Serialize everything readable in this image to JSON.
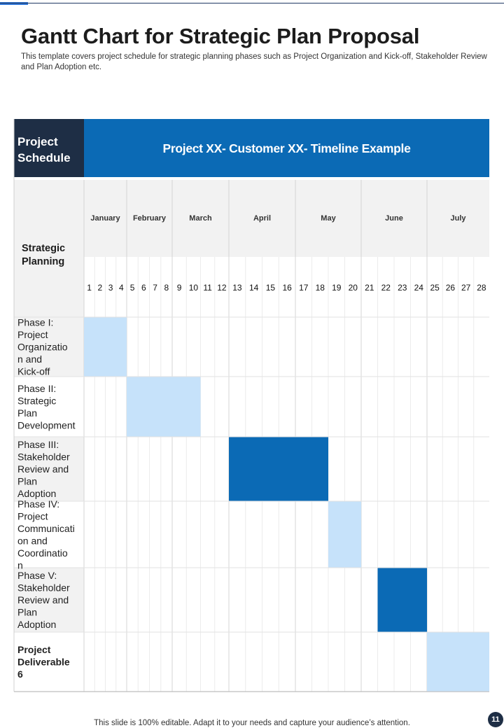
{
  "page": {
    "title": "Gantt Chart for Strategic Plan Proposal",
    "subtitle": "This template covers project schedule for strategic planning phases such as Project Organization and Kick-off, Stakeholder Review and Plan Adoption etc.",
    "footer": "This slide is 100% editable. Adapt it to your needs and capture your audience’s attention.",
    "page_number": "11"
  },
  "colors": {
    "dark_navy": "#1e2e45",
    "header_blue": "#0b6ab5",
    "bar_dark": "#0b6ab5",
    "bar_light": "#c6e2fa",
    "header_gray": "#f2f2f2",
    "row_alt": "#f2f2f2"
  },
  "chart_data": {
    "type": "table",
    "corner_label": "Project Schedule",
    "banner_title": "Project XX- Customer XX- Timeline Example",
    "row_header_label": "Strategic Planning",
    "months": [
      {
        "name": "January",
        "weeks": [
          "1",
          "2",
          "3",
          "4"
        ]
      },
      {
        "name": "February",
        "weeks": [
          "5",
          "6",
          "7",
          "8"
        ]
      },
      {
        "name": "March",
        "weeks": [
          "9",
          "10",
          "11",
          "12"
        ]
      },
      {
        "name": "April",
        "weeks": [
          "13",
          "14",
          "15",
          "16"
        ]
      },
      {
        "name": "May",
        "weeks": [
          "17",
          "18",
          "19",
          "20"
        ]
      },
      {
        "name": "June",
        "weeks": [
          "21",
          "22",
          "23",
          "24"
        ]
      },
      {
        "name": "July",
        "weeks": [
          "25",
          "26",
          "27",
          "28"
        ]
      }
    ],
    "tasks": [
      {
        "name": "Phase I: Project Organization and Kick-off",
        "start_week": 1,
        "end_week": 4,
        "style": "light"
      },
      {
        "name": "Phase II: Strategic Plan Development",
        "start_week": 5,
        "end_week": 10,
        "style": "light"
      },
      {
        "name": "Phase III: Stakeholder Review and Plan Adoption",
        "start_week": 13,
        "end_week": 18,
        "style": "dark"
      },
      {
        "name": "Phase IV: Project Communication and Coordination",
        "start_week": 19,
        "end_week": 20,
        "style": "light"
      },
      {
        "name": "Phase V: Stakeholder Review and Plan Adoption",
        "start_week": 22,
        "end_week": 24,
        "style": "dark"
      },
      {
        "name": "Project Deliverable 6",
        "start_week": 25,
        "end_week": 28,
        "style": "light",
        "bold": true
      }
    ]
  }
}
